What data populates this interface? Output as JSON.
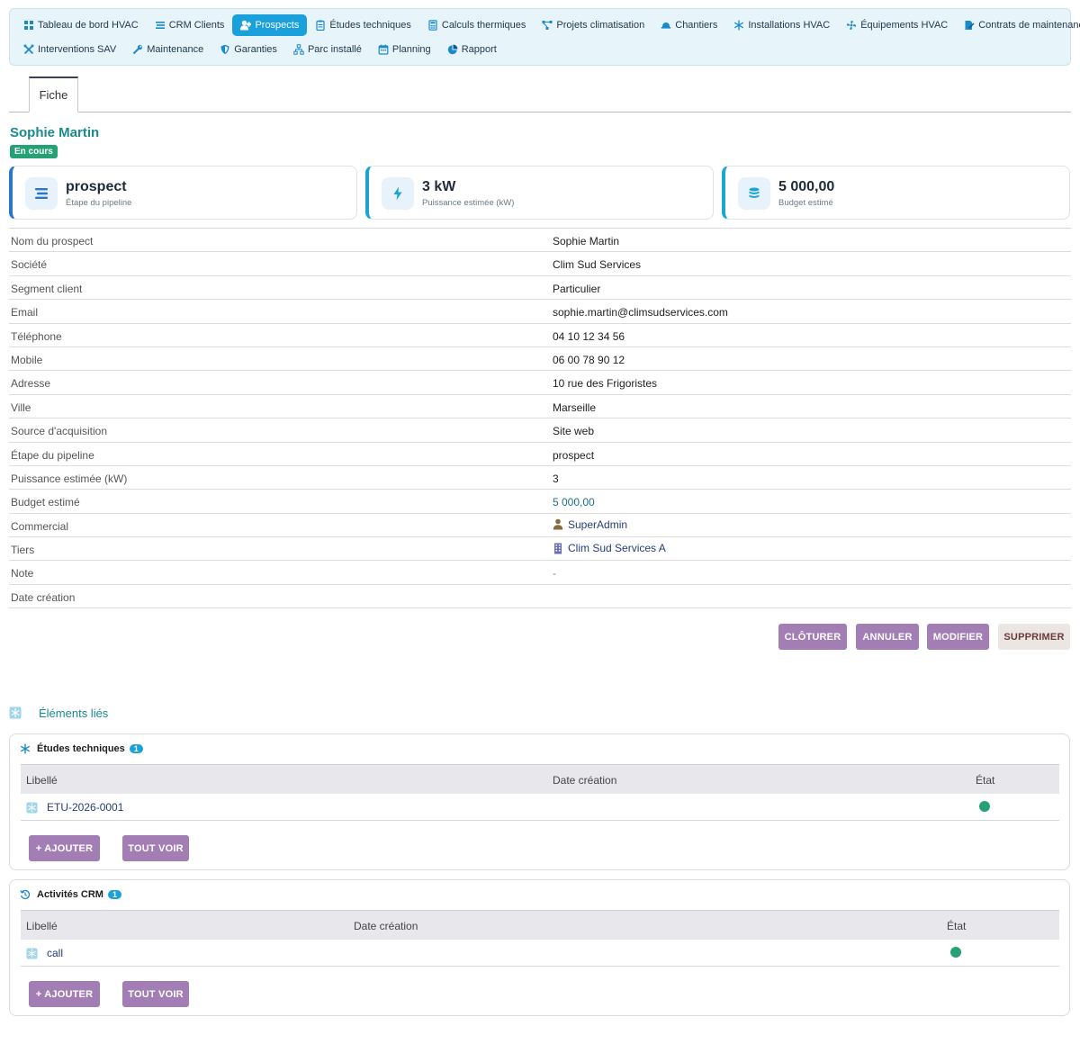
{
  "nav": {
    "row1": [
      {
        "label": "Tableau de bord HVAC",
        "icon": "dashboard-icon"
      },
      {
        "label": "CRM Clients",
        "icon": "list-icon"
      },
      {
        "label": "Prospects",
        "icon": "user-plus-icon",
        "active": true
      },
      {
        "label": "Études techniques",
        "icon": "clipboard-icon"
      },
      {
        "label": "Calculs thermiques",
        "icon": "calculator-icon"
      },
      {
        "label": "Projets climatisation",
        "icon": "project-diagram-icon"
      },
      {
        "label": "Chantiers",
        "icon": "hardhat-icon"
      },
      {
        "label": "Installations HVAC",
        "icon": "snowflake-icon"
      },
      {
        "label": "Équipements HVAC",
        "icon": "fan-icon"
      },
      {
        "label": "Contrats de maintenance",
        "icon": "contract-icon"
      }
    ],
    "row2": [
      {
        "label": "Interventions SAV",
        "icon": "tools-icon"
      },
      {
        "label": "Maintenance",
        "icon": "wrench-icon"
      },
      {
        "label": "Garanties",
        "icon": "shield-icon"
      },
      {
        "label": "Parc installé",
        "icon": "network-icon"
      },
      {
        "label": "Planning",
        "icon": "calendar-icon"
      },
      {
        "label": "Rapport",
        "icon": "pie-chart-icon"
      }
    ]
  },
  "tabs": {
    "fiche": "Fiche"
  },
  "header": {
    "title": "Sophie Martin",
    "status": "En cours",
    "status_color": "#25a275"
  },
  "cards": [
    {
      "value": "prospect",
      "label": "Étape du pipeline",
      "icon": "pipeline-icon"
    },
    {
      "value": "3 kW",
      "label": "Puissance estimée (kW)",
      "icon": "bolt-icon"
    },
    {
      "value": "5 000,00",
      "label": "Budget estimé",
      "icon": "coins-icon"
    }
  ],
  "fields": {
    "nom": {
      "label": "Nom du prospect",
      "value": "Sophie Martin"
    },
    "societe": {
      "label": "Société",
      "value": "Clim Sud Services"
    },
    "segment": {
      "label": "Segment client",
      "value": "Particulier"
    },
    "email": {
      "label": "Email",
      "value": "sophie.martin@climsudservices.com"
    },
    "telephone": {
      "label": "Téléphone",
      "value": "04 10 12 34 56"
    },
    "mobile": {
      "label": "Mobile",
      "value": "06 00 78 90 12"
    },
    "adresse": {
      "label": "Adresse",
      "value": "10 rue des Frigoristes"
    },
    "ville": {
      "label": "Ville",
      "value": "Marseille"
    },
    "source": {
      "label": "Source d'acquisition",
      "value": "Site web"
    },
    "etape": {
      "label": "Étape du pipeline",
      "value": "prospect"
    },
    "puissance": {
      "label": "Puissance estimée (kW)",
      "value": "3"
    },
    "budget": {
      "label": "Budget estimé",
      "value": "5 000,00"
    },
    "commercial": {
      "label": "Commercial",
      "value": "SuperAdmin"
    },
    "tiers": {
      "label": "Tiers",
      "value": "Clim Sud Services A"
    },
    "note": {
      "label": "Note",
      "value": "-"
    },
    "date_creation": {
      "label": "Date création",
      "value": ""
    }
  },
  "actions": {
    "cloturer": "CLÔTURER",
    "annuler": "ANNULER",
    "modifier": "MODIFIER",
    "supprimer": "SUPPRIMER"
  },
  "linked": {
    "title": "Éléments liés",
    "etudes": {
      "title": "Études techniques",
      "count": "1",
      "columns": {
        "libelle": "Libellé",
        "date": "Date création",
        "etat": "État"
      },
      "rows": [
        {
          "label": "ETU-2026-0001",
          "date": "",
          "status_color": "#25a275"
        }
      ],
      "add": "+ AJOUTER",
      "all": "TOUT VOIR"
    },
    "activites": {
      "title": "Activités CRM",
      "count": "1",
      "columns": {
        "libelle": "Libellé",
        "date": "Date création",
        "etat": "État"
      },
      "rows": [
        {
          "label": "call",
          "date": "",
          "status_color": "#25a275"
        }
      ],
      "add": "+ AJOUTER",
      "all": "TOUT VOIR"
    }
  },
  "colors": {
    "accent": "#1aa0da",
    "teal_title": "#1a8a8f",
    "button": "#a27eb4",
    "success": "#25a275"
  }
}
